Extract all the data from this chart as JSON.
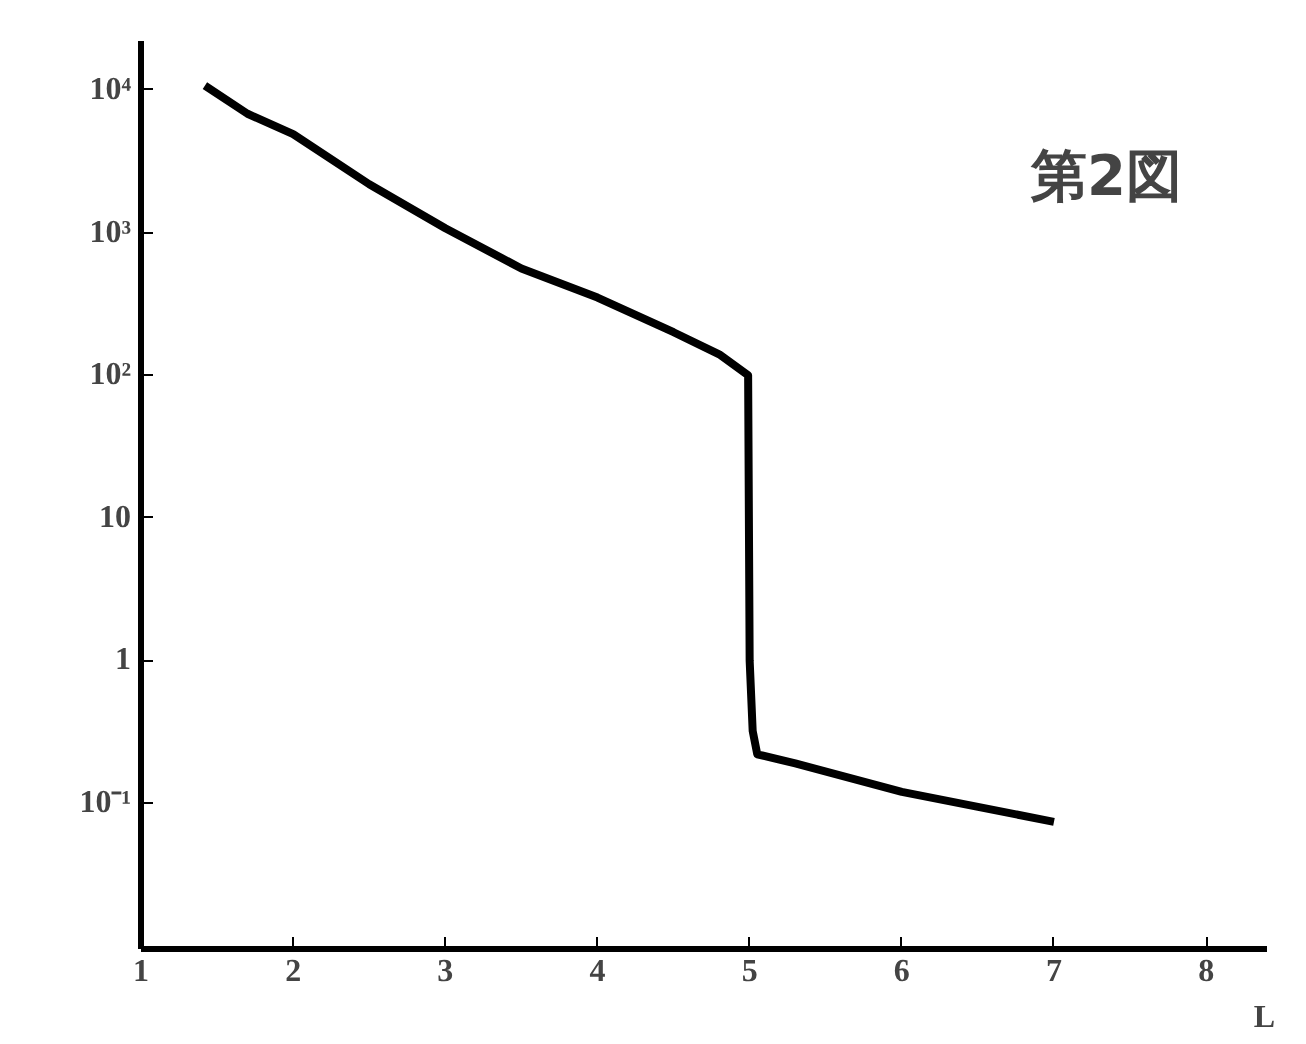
{
  "chart_data": {
    "type": "line",
    "xlabel": "L",
    "annotations": [
      "第2図"
    ],
    "x": [
      1.42,
      1.7,
      2.0,
      2.5,
      3.0,
      3.5,
      4.0,
      4.5,
      4.8,
      4.99,
      5.0,
      5.02,
      5.05,
      5.3,
      6.0,
      7.0
    ],
    "series": [
      {
        "color": "#000000",
        "values": [
          10700,
          6800,
          4900,
          2180,
          1070,
          560,
          350,
          200,
          140,
          100,
          1.0,
          0.32,
          0.22,
          0.19,
          0.12,
          0.074
        ]
      }
    ],
    "xlim": [
      1,
      8.4
    ],
    "xticks": [
      1,
      2,
      3,
      4,
      5,
      6,
      7,
      8
    ],
    "ylim": [
      0.0095,
      22000
    ],
    "yticks": [
      {
        "value": 10000,
        "label": "10⁴"
      },
      {
        "value": 1000,
        "label": "10³"
      },
      {
        "value": 100,
        "label": "10²"
      },
      10,
      1,
      {
        "value": 0.1,
        "label": "10⁻¹"
      }
    ],
    "log": true,
    "grid": false,
    "marker": "none",
    "line_style": "solid"
  }
}
